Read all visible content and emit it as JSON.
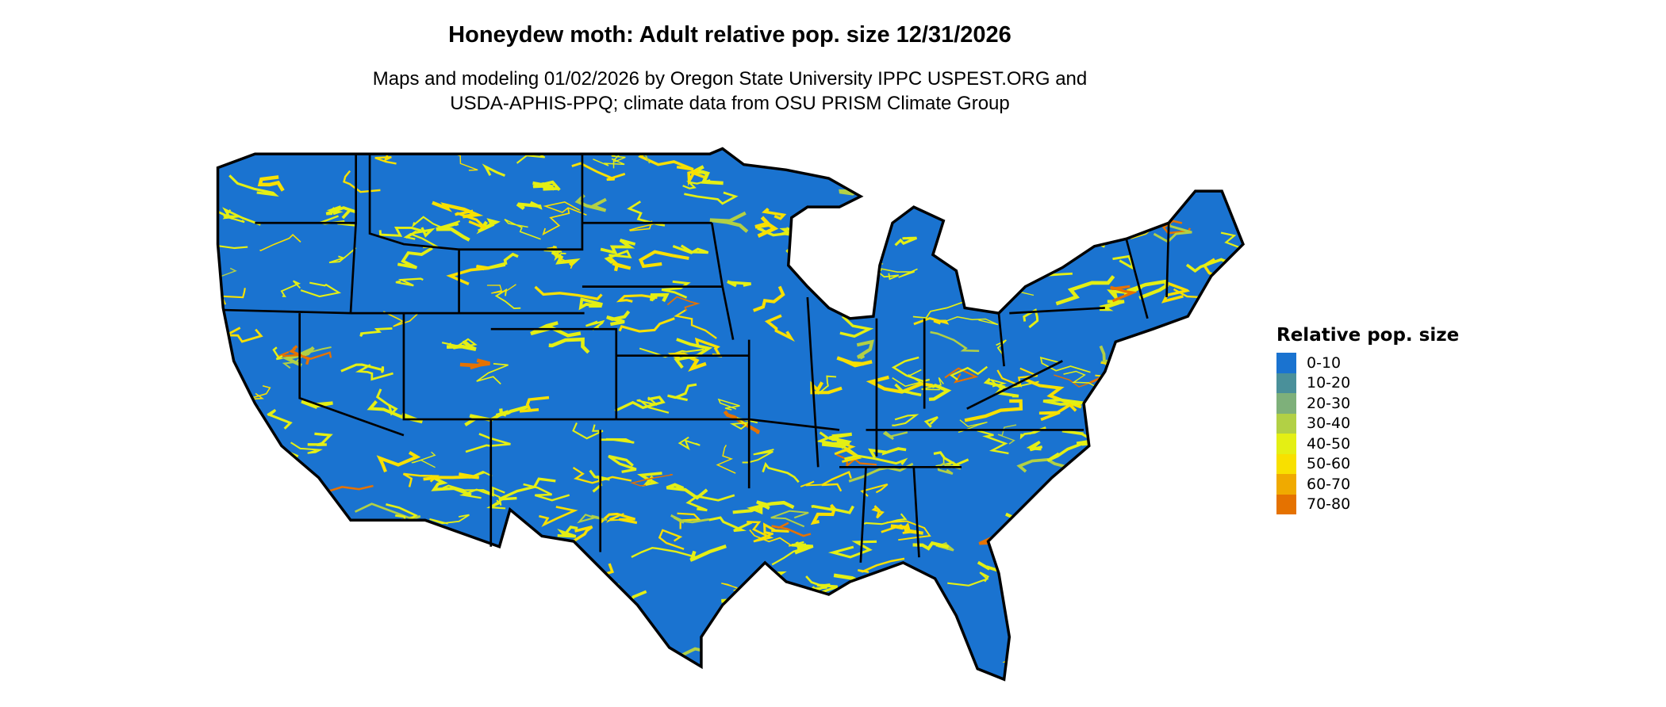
{
  "title": "Honeydew moth: Adult relative pop. size 12/31/2026",
  "subtitle_lines": [
    "Maps and modeling 01/02/2026 by Oregon State University IPPC USPEST.ORG and",
    "USDA-APHIS-PPQ; climate data from OSU PRISM Climate Group"
  ],
  "map": {
    "region": "Contiguous United States",
    "base_color": "#1a73d0",
    "border_color": "#000000"
  },
  "legend": {
    "title": "Relative pop. size",
    "items": [
      {
        "label": "0-10",
        "color": "#1a73d0"
      },
      {
        "label": "10-20",
        "color": "#4a909a"
      },
      {
        "label": "20-30",
        "color": "#7eb07a"
      },
      {
        "label": "30-40",
        "color": "#b2d045"
      },
      {
        "label": "40-50",
        "color": "#e4ef14"
      },
      {
        "label": "50-60",
        "color": "#f8e000"
      },
      {
        "label": "60-70",
        "color": "#f0aa00"
      },
      {
        "label": "70-80",
        "color": "#e57200"
      }
    ]
  }
}
